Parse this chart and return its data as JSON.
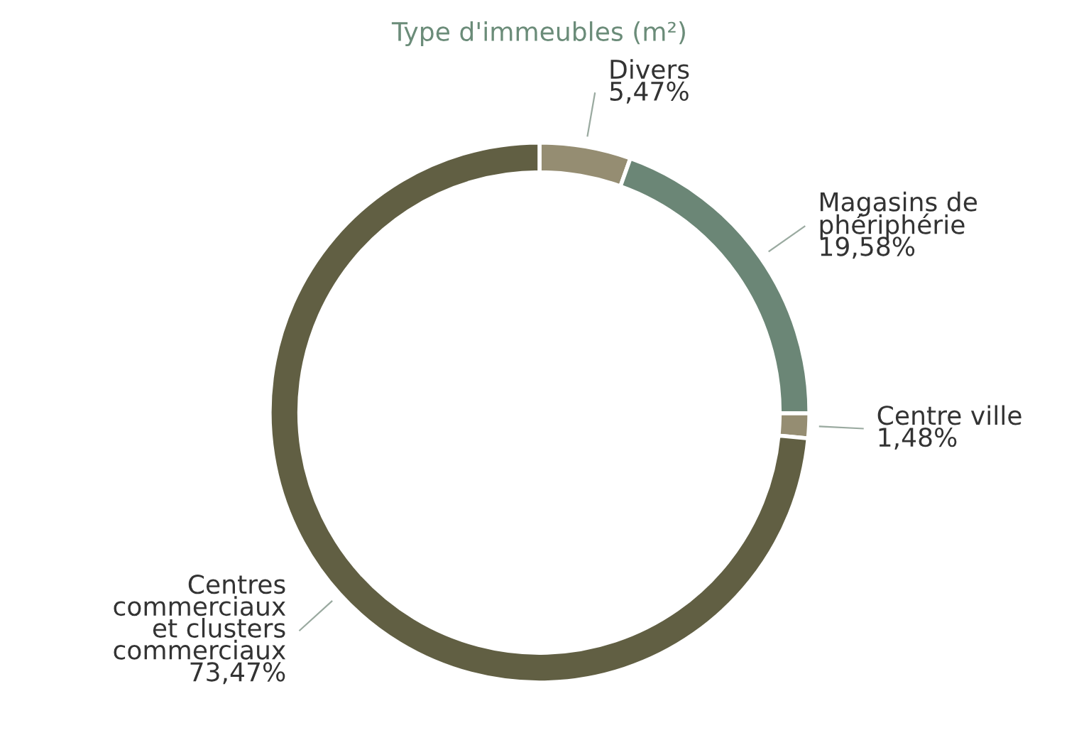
{
  "chart_data": {
    "type": "donut",
    "title": "Type d'immeubles (m²)",
    "categories": [
      "Divers",
      "Magasins de\nphériphérie",
      "Centre ville",
      "Centres\ncommerciaux\net clusters\ncommerciaux"
    ],
    "values": [
      5.47,
      19.58,
      1.48,
      73.47
    ],
    "value_labels": [
      "5,47%",
      "19,58%",
      "1,48%",
      "73,47%"
    ],
    "colors": [
      "#958d72",
      "#6b8676",
      "#958d72",
      "#615f43"
    ],
    "legend": false
  }
}
